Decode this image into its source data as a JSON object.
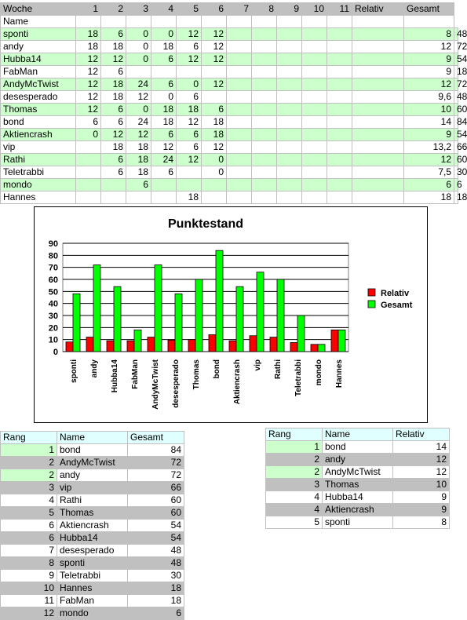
{
  "main_table": {
    "header": [
      "Woche",
      "1",
      "2",
      "3",
      "4",
      "5",
      "6",
      "7",
      "8",
      "9",
      "10",
      "11",
      "Relativ",
      "Gesamt"
    ],
    "name_label": "Name",
    "rows": [
      {
        "name": "sponti",
        "w": [
          "18",
          "6",
          "0",
          "0",
          "12",
          "12",
          "",
          "",
          "",
          "",
          "",
          ""
        ],
        "relativ": "8",
        "gesamt": "48",
        "color": "g"
      },
      {
        "name": "andy",
        "w": [
          "18",
          "18",
          "0",
          "18",
          "6",
          "12",
          "",
          "",
          "",
          "",
          "",
          ""
        ],
        "relativ": "12",
        "gesamt": "72",
        "color": "w"
      },
      {
        "name": "Hubba14",
        "w": [
          "12",
          "12",
          "0",
          "6",
          "12",
          "12",
          "",
          "",
          "",
          "",
          "",
          ""
        ],
        "relativ": "9",
        "gesamt": "54",
        "color": "g"
      },
      {
        "name": "FabMan",
        "w": [
          "12",
          "6",
          "",
          "",
          "",
          "",
          "",
          "",
          "",
          "",
          "",
          ""
        ],
        "relativ": "9",
        "gesamt": "18",
        "color": "w"
      },
      {
        "name": "AndyMcTwist",
        "w": [
          "12",
          "18",
          "24",
          "6",
          "0",
          "12",
          "",
          "",
          "",
          "",
          "",
          ""
        ],
        "relativ": "12",
        "gesamt": "72",
        "color": "g"
      },
      {
        "name": "desesperado",
        "w": [
          "12",
          "18",
          "12",
          "0",
          "6",
          "",
          "",
          "",
          "",
          "",
          "",
          ""
        ],
        "relativ": "9,6",
        "gesamt": "48",
        "color": "w"
      },
      {
        "name": "Thomas",
        "w": [
          "12",
          "6",
          "0",
          "18",
          "18",
          "6",
          "",
          "",
          "",
          "",
          "",
          ""
        ],
        "relativ": "10",
        "gesamt": "60",
        "color": "g"
      },
      {
        "name": "bond",
        "w": [
          "6",
          "6",
          "24",
          "18",
          "12",
          "18",
          "",
          "",
          "",
          "",
          "",
          ""
        ],
        "relativ": "14",
        "gesamt": "84",
        "color": "w"
      },
      {
        "name": "Aktiencrash",
        "w": [
          "0",
          "12",
          "12",
          "6",
          "6",
          "18",
          "",
          "",
          "",
          "",
          "",
          ""
        ],
        "relativ": "9",
        "gesamt": "54",
        "color": "g"
      },
      {
        "name": "vip",
        "w": [
          "",
          "18",
          "18",
          "12",
          "6",
          "12",
          "",
          "",
          "",
          "",
          "",
          ""
        ],
        "relativ": "13,2",
        "gesamt": "66",
        "color": "w"
      },
      {
        "name": "Rathi",
        "w": [
          "",
          "6",
          "18",
          "24",
          "12",
          "0",
          "",
          "",
          "",
          "",
          "",
          ""
        ],
        "relativ": "12",
        "gesamt": "60",
        "color": "g"
      },
      {
        "name": "Teletrabbi",
        "w": [
          "",
          "6",
          "18",
          "6",
          "",
          "0",
          "",
          "",
          "",
          "",
          "",
          ""
        ],
        "relativ": "7,5",
        "gesamt": "30",
        "color": "w"
      },
      {
        "name": "mondo",
        "w": [
          "",
          "",
          "6",
          "",
          "",
          "",
          "",
          "",
          "",
          "",
          "",
          ""
        ],
        "relativ": "6",
        "gesamt": "6",
        "color": "g"
      },
      {
        "name": "Hannes",
        "w": [
          "",
          "",
          "",
          "",
          "18",
          "",
          "",
          "",
          "",
          "",
          "",
          ""
        ],
        "relativ": "18",
        "gesamt": "18",
        "color": "w"
      }
    ]
  },
  "chart_data": {
    "type": "bar",
    "title": "Punktestand",
    "categories": [
      "sponti",
      "andy",
      "Hubba14",
      "FabMan",
      "AndyMcTwist",
      "desesperado",
      "Thomas",
      "bond",
      "Aktiencrash",
      "vip",
      "Rathi",
      "Teletrabbi",
      "mondo",
      "Hannes"
    ],
    "series": [
      {
        "name": "Relativ",
        "values": [
          8,
          12,
          9,
          9,
          12,
          9.6,
          10,
          14,
          9,
          13.2,
          12,
          7.5,
          6,
          18
        ],
        "color": "#ff0000"
      },
      {
        "name": "Gesamt",
        "values": [
          48,
          72,
          54,
          18,
          72,
          48,
          60,
          84,
          54,
          66,
          60,
          30,
          6,
          18
        ],
        "color": "#00ff00"
      }
    ],
    "yticks": [
      0,
      10,
      20,
      30,
      40,
      50,
      60,
      70,
      80,
      90
    ],
    "ylim": [
      0,
      90
    ],
    "grid": true,
    "legend": "right"
  },
  "rank_gesamt": {
    "header": [
      "Rang",
      "Name",
      "Gesamt"
    ],
    "rows": [
      {
        "rang": "1",
        "name": "bond",
        "val": "84",
        "style": "rg1"
      },
      {
        "rang": "2",
        "name": "AndyMcTwist",
        "val": "72",
        "style": "rgray"
      },
      {
        "rang": "2",
        "name": "andy",
        "val": "72",
        "style": "rg1"
      },
      {
        "rang": "3",
        "name": "vip",
        "val": "66",
        "style": "rgray"
      },
      {
        "rang": "4",
        "name": "Rathi",
        "val": "60",
        "style": "w"
      },
      {
        "rang": "5",
        "name": "Thomas",
        "val": "60",
        "style": "rgray"
      },
      {
        "rang": "6",
        "name": "Aktiencrash",
        "val": "54",
        "style": "w"
      },
      {
        "rang": "6",
        "name": "Hubba14",
        "val": "54",
        "style": "rgray"
      },
      {
        "rang": "7",
        "name": "desesperado",
        "val": "48",
        "style": "w"
      },
      {
        "rang": "8",
        "name": "sponti",
        "val": "48",
        "style": "rgray"
      },
      {
        "rang": "9",
        "name": "Teletrabbi",
        "val": "30",
        "style": "w"
      },
      {
        "rang": "10",
        "name": "Hannes",
        "val": "18",
        "style": "rgray"
      },
      {
        "rang": "11",
        "name": "FabMan",
        "val": "18",
        "style": "w"
      },
      {
        "rang": "12",
        "name": "mondo",
        "val": "6",
        "style": "rgray"
      }
    ]
  },
  "rank_relativ": {
    "header": [
      "Rang",
      "Name",
      "Relativ"
    ],
    "rows": [
      {
        "rang": "1",
        "name": "bond",
        "val": "14",
        "style": "rg1"
      },
      {
        "rang": "2",
        "name": "andy",
        "val": "12",
        "style": "rgray"
      },
      {
        "rang": "2",
        "name": "AndyMcTwist",
        "val": "12",
        "style": "rg1"
      },
      {
        "rang": "3",
        "name": "Thomas",
        "val": "10",
        "style": "rgray"
      },
      {
        "rang": "4",
        "name": "Hubba14",
        "val": "9",
        "style": "w"
      },
      {
        "rang": "4",
        "name": "Aktiencrash",
        "val": "9",
        "style": "rgray"
      },
      {
        "rang": "5",
        "name": "sponti",
        "val": "8",
        "style": "w"
      }
    ]
  }
}
